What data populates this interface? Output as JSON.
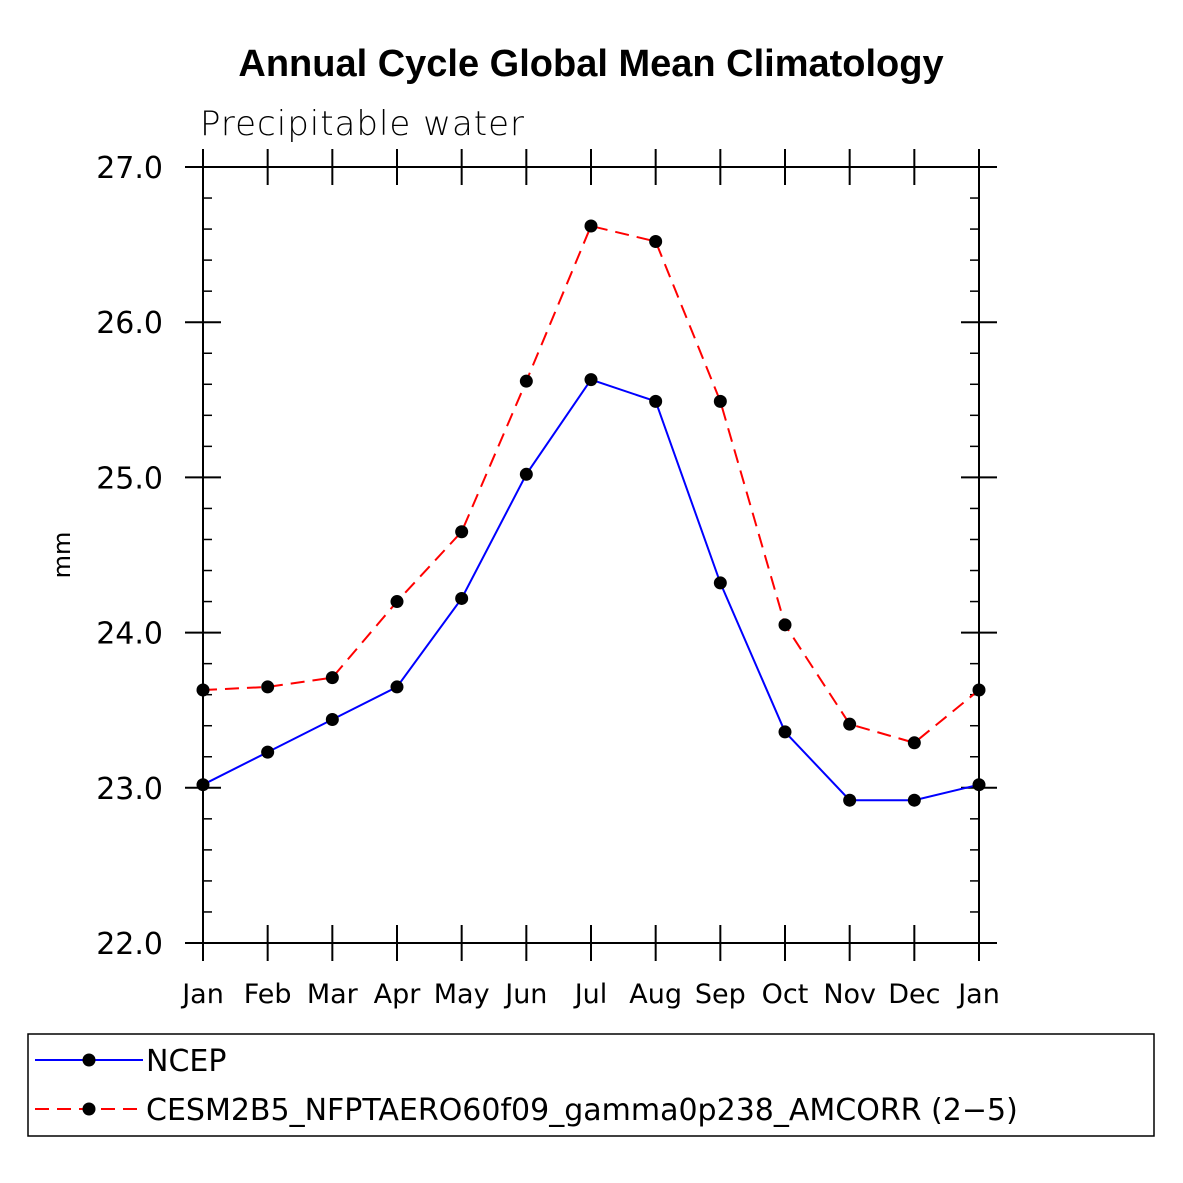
{
  "chart_data": {
    "type": "line",
    "title": "Annual Cycle Global Mean Climatology",
    "subtitle": "Precipitable water",
    "xlabel": "",
    "ylabel": "mm",
    "categories": [
      "Jan",
      "Feb",
      "Mar",
      "Apr",
      "May",
      "Jun",
      "Jul",
      "Aug",
      "Sep",
      "Oct",
      "Nov",
      "Dec",
      "Jan"
    ],
    "ylim": [
      22.0,
      27.0
    ],
    "yticks": [
      "22.0",
      "23.0",
      "24.0",
      "25.0",
      "26.0",
      "27.0"
    ],
    "grid": false,
    "legend_position": "bottom",
    "series": [
      {
        "name": "NCEP",
        "color": "#0000ff",
        "style": "solid",
        "marker": "filled-circle",
        "values": [
          23.02,
          23.23,
          23.44,
          23.65,
          24.22,
          25.02,
          25.63,
          25.49,
          24.32,
          23.36,
          22.92,
          22.92,
          23.02
        ]
      },
      {
        "name": "CESM2B5_NFPTAERO60f09_gamma0p238_AMCORR (2−5)",
        "color": "#ff0000",
        "style": "dashed",
        "marker": "filled-circle",
        "values": [
          23.63,
          23.65,
          23.71,
          24.2,
          24.65,
          25.62,
          26.62,
          26.52,
          25.49,
          24.05,
          23.41,
          23.29,
          23.63
        ]
      }
    ]
  }
}
